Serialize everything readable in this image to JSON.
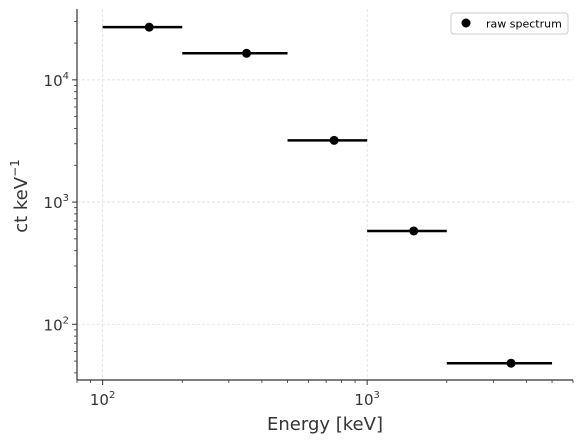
{
  "chart_data": {
    "type": "scatter",
    "title": "",
    "xlabel": "Energy [keV]",
    "ylabel": "ct keV",
    "ylabel_exponent": "−1",
    "x_scale": "log",
    "y_scale": "log",
    "xlim": [
      80,
      6000
    ],
    "ylim": [
      35,
      38000
    ],
    "grid": true,
    "legend_position": "top-right",
    "x_ticks": [
      {
        "value": 100,
        "base": "10",
        "exp": "2"
      },
      {
        "value": 1000,
        "base": "10",
        "exp": "3"
      }
    ],
    "y_ticks": [
      {
        "value": 100,
        "base": "10",
        "exp": "2"
      },
      {
        "value": 1000,
        "base": "10",
        "exp": "3"
      },
      {
        "value": 10000,
        "base": "10",
        "exp": "4"
      }
    ],
    "series": [
      {
        "name": "raw spectrum",
        "color": "#000000",
        "points": [
          {
            "x": 150,
            "x_low": 100,
            "x_high": 200,
            "y": 27000
          },
          {
            "x": 350,
            "x_low": 200,
            "x_high": 500,
            "y": 16500
          },
          {
            "x": 750,
            "x_low": 500,
            "x_high": 1000,
            "y": 3200
          },
          {
            "x": 1500,
            "x_low": 1000,
            "x_high": 2000,
            "y": 580
          },
          {
            "x": 3500,
            "x_low": 2000,
            "x_high": 5000,
            "y": 48
          }
        ]
      }
    ]
  }
}
